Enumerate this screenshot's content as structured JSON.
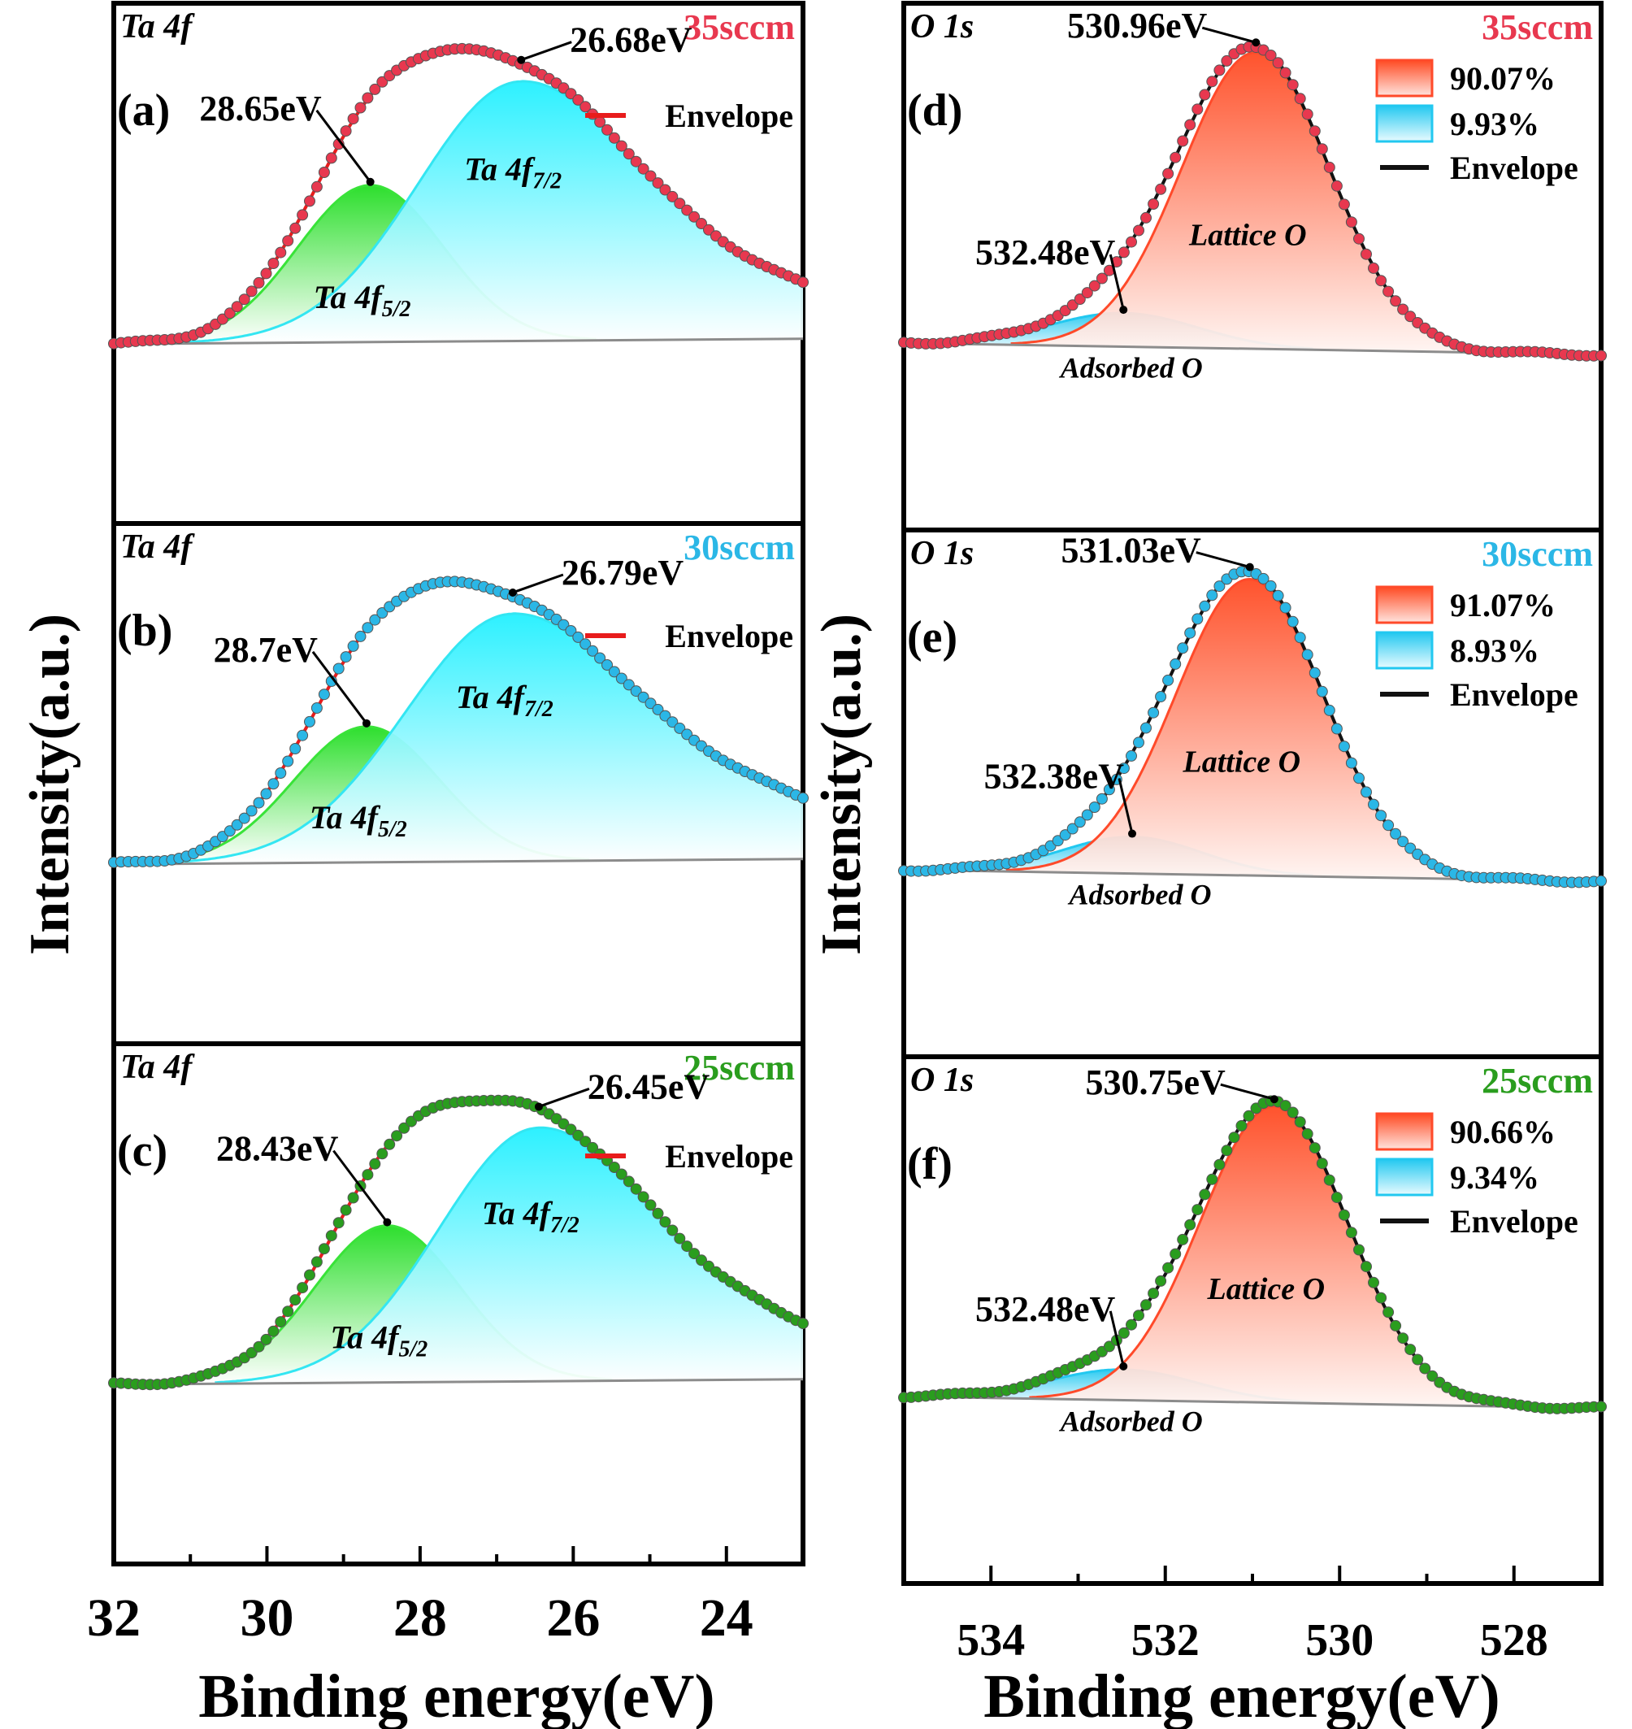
{
  "figure": {
    "ylabel": "Intensity(a.u.)",
    "xlabel": "Binding energy(eV)",
    "colors": {
      "sccm35": "#e8384f",
      "sccm30": "#2bb7e6",
      "sccm25": "#2a9d1e",
      "envelope_ta": "#e81c1c",
      "envelope_o": "#111111",
      "green_peak": "#39e339",
      "cyan_peak": "#33e6f2",
      "lattice_peak": "#ff4a2a",
      "adsorbed_peak": "#22c8f0",
      "background": "#8c8c8c"
    }
  },
  "chart_data": [
    {
      "id": "a",
      "label": "(a)",
      "type": "line",
      "title": "Ta 4f",
      "condition": "35sccm",
      "xlabel": "Binding energy(eV)",
      "ylabel": "Intensity(a.u.)",
      "xlim": [
        32,
        23
      ],
      "reversed_x": true,
      "legend": [
        "Envelope"
      ],
      "components": [
        {
          "name": "Ta 4f5/2",
          "center": 28.65,
          "height": 0.52,
          "width": 0.95
        },
        {
          "name": "Ta 4f7/2",
          "center": 26.68,
          "height": 0.86,
          "width": 1.35,
          "tail": 0.11
        }
      ],
      "annotations": [
        {
          "text": "28.65eV",
          "at": 28.65
        },
        {
          "text": "26.68eV",
          "at": 26.68
        }
      ],
      "peak_labels": {
        "p1": "Ta 4f",
        "p1_sub": "5/2",
        "p2": "Ta 4f",
        "p2_sub": "7/2"
      }
    },
    {
      "id": "b",
      "label": "(b)",
      "type": "line",
      "title": "Ta 4f",
      "condition": "30sccm",
      "xlabel": "Binding energy(eV)",
      "ylabel": "Intensity(a.u.)",
      "xlim": [
        32,
        23
      ],
      "reversed_x": true,
      "legend": [
        "Envelope"
      ],
      "components": [
        {
          "name": "Ta 4f5/2",
          "center": 28.7,
          "height": 0.45,
          "width": 0.95
        },
        {
          "name": "Ta 4f7/2",
          "center": 26.79,
          "height": 0.82,
          "width": 1.4,
          "tail": 0.13
        }
      ],
      "annotations": [
        {
          "text": "28.7eV",
          "at": 28.7
        },
        {
          "text": "26.79eV",
          "at": 26.79
        }
      ],
      "peak_labels": {
        "p1": "Ta 4f",
        "p1_sub": "5/2",
        "p2": "Ta 4f",
        "p2_sub": "7/2"
      }
    },
    {
      "id": "c",
      "label": "(c)",
      "type": "line",
      "title": "Ta 4f",
      "condition": "25sccm",
      "xlabel": "Binding energy(eV)",
      "ylabel": "Intensity(a.u.)",
      "xlim": [
        32,
        23
      ],
      "reversed_x": true,
      "xticks": [
        32,
        30,
        28,
        26,
        24
      ],
      "legend": [
        "Envelope"
      ],
      "components": [
        {
          "name": "Ta 4f5/2",
          "center": 28.43,
          "height": 0.52,
          "width": 0.95
        },
        {
          "name": "Ta 4f7/2",
          "center": 26.45,
          "height": 0.84,
          "width": 1.3,
          "tail": 0.11
        }
      ],
      "annotations": [
        {
          "text": "28.43eV",
          "at": 28.43
        },
        {
          "text": "26.45eV",
          "at": 26.45
        }
      ],
      "peak_labels": {
        "p1": "Ta 4f",
        "p1_sub": "5/2",
        "p2": "Ta 4f",
        "p2_sub": "7/2"
      }
    },
    {
      "id": "d",
      "label": "(d)",
      "type": "line",
      "title": "O 1s",
      "condition": "35sccm",
      "xlabel": "Binding energy(eV)",
      "ylabel": "Intensity(a.u.)",
      "xlim": [
        535,
        527
      ],
      "reversed_x": true,
      "legend": [
        "90.07%",
        "9.93%",
        "Envelope"
      ],
      "components": [
        {
          "name": "Adsorbed O",
          "center": 532.48,
          "height": 0.11,
          "width": 0.85,
          "percent": 9.93
        },
        {
          "name": "Lattice O",
          "center": 530.96,
          "height": 0.97,
          "width": 0.85,
          "percent": 90.07
        }
      ],
      "annotations": [
        {
          "text": "532.48eV",
          "at": 532.48
        },
        {
          "text": "530.96eV",
          "at": 530.96
        }
      ],
      "peak_labels": {
        "lattice": "Lattice O",
        "adsorbed": "Adsorbed O"
      }
    },
    {
      "id": "e",
      "label": "(e)",
      "type": "line",
      "title": "O 1s",
      "condition": "30sccm",
      "xlabel": "Binding energy(eV)",
      "ylabel": "Intensity(a.u.)",
      "xlim": [
        535,
        527
      ],
      "reversed_x": true,
      "legend": [
        "91.07%",
        "8.93%",
        "Envelope"
      ],
      "components": [
        {
          "name": "Adsorbed O",
          "center": 532.38,
          "height": 0.12,
          "width": 0.8,
          "percent": 8.93
        },
        {
          "name": "Lattice O",
          "center": 531.03,
          "height": 0.97,
          "width": 0.85,
          "percent": 91.07
        }
      ],
      "annotations": [
        {
          "text": "532.38eV",
          "at": 532.38
        },
        {
          "text": "531.03eV",
          "at": 531.03
        }
      ],
      "peak_labels": {
        "lattice": "Lattice O",
        "adsorbed": "Adsorbed O"
      }
    },
    {
      "id": "f",
      "label": "(f)",
      "type": "line",
      "title": "O 1s",
      "condition": "25sccm",
      "xlabel": "Binding energy(eV)",
      "ylabel": "Intensity(a.u.)",
      "xlim": [
        535,
        527
      ],
      "reversed_x": true,
      "xticks": [
        534,
        532,
        530,
        528
      ],
      "legend": [
        "90.66%",
        "9.34%",
        "Envelope"
      ],
      "components": [
        {
          "name": "Adsorbed O",
          "center": 532.48,
          "height": 0.1,
          "width": 0.85,
          "percent": 9.34
        },
        {
          "name": "Lattice O",
          "center": 530.75,
          "height": 0.97,
          "width": 0.85,
          "percent": 90.66
        }
      ],
      "annotations": [
        {
          "text": "532.48eV",
          "at": 532.48
        },
        {
          "text": "530.75eV",
          "at": 530.75
        }
      ],
      "peak_labels": {
        "lattice": "Lattice O",
        "adsorbed": "Adsorbed O"
      }
    }
  ]
}
